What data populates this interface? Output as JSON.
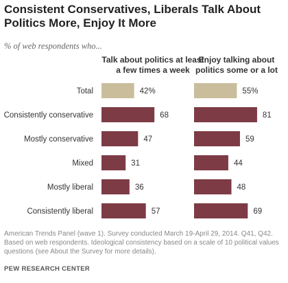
{
  "title": "Consistent Conservatives, Liberals Talk About Politics More, Enjoy It More",
  "subtitle": "% of web respondents who...",
  "columns": [
    "Talk about politics at least a few times a week",
    "Enjoy talking about politics some or a lot"
  ],
  "footer": "American Trends Panel (wave 1). Survey conducted March 19-April 29, 2014. Q41, Q42. Based on web respondents. Ideological consistency based on a scale of 10 political values questions (see About the Survey for more details).",
  "source": "PEW RESEARCH CENTER",
  "colors": {
    "total": "#c9bd9c",
    "group": "#7d3b45"
  },
  "chart_data": {
    "type": "bar",
    "orientation": "horizontal",
    "categories": [
      "Total",
      "Consistently conservative",
      "Mostly conservative",
      "Mixed",
      "Mostly liberal",
      "Consistently liberal"
    ],
    "series": [
      {
        "name": "Talk about politics at least a few times a week",
        "values": [
          42,
          68,
          47,
          31,
          36,
          57
        ],
        "labels": [
          "42%",
          "68",
          "47",
          "31",
          "36",
          "57"
        ]
      },
      {
        "name": "Enjoy talking about politics some or a lot",
        "values": [
          55,
          81,
          59,
          44,
          48,
          69
        ],
        "labels": [
          "55%",
          "81",
          "59",
          "44",
          "48",
          "69"
        ]
      }
    ],
    "xlim": [
      0,
      100
    ]
  }
}
